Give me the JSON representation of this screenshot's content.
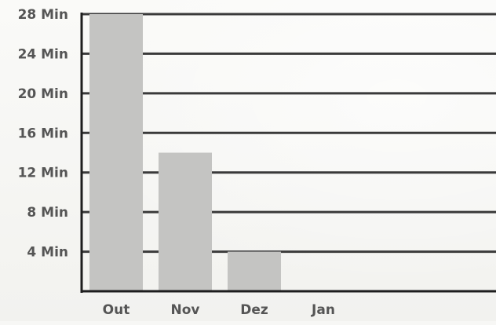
{
  "chart_data": {
    "type": "bar",
    "categories": [
      "Out",
      "Nov",
      "Dez",
      "Jan"
    ],
    "values": [
      28,
      14,
      4,
      0
    ],
    "yticks": [
      4,
      8,
      12,
      16,
      20,
      24,
      28
    ],
    "ytick_labels": [
      "4 Min",
      "8 Min",
      "12 Min",
      "16 Min",
      "20 Min",
      "24 Min",
      "28 Min"
    ],
    "ylim": [
      0,
      28
    ],
    "grid": true,
    "colors": {
      "bar": "#c4c4c2",
      "grid": "#3a3a3a",
      "axis": "#1e1e1e",
      "text": "#555555"
    }
  }
}
